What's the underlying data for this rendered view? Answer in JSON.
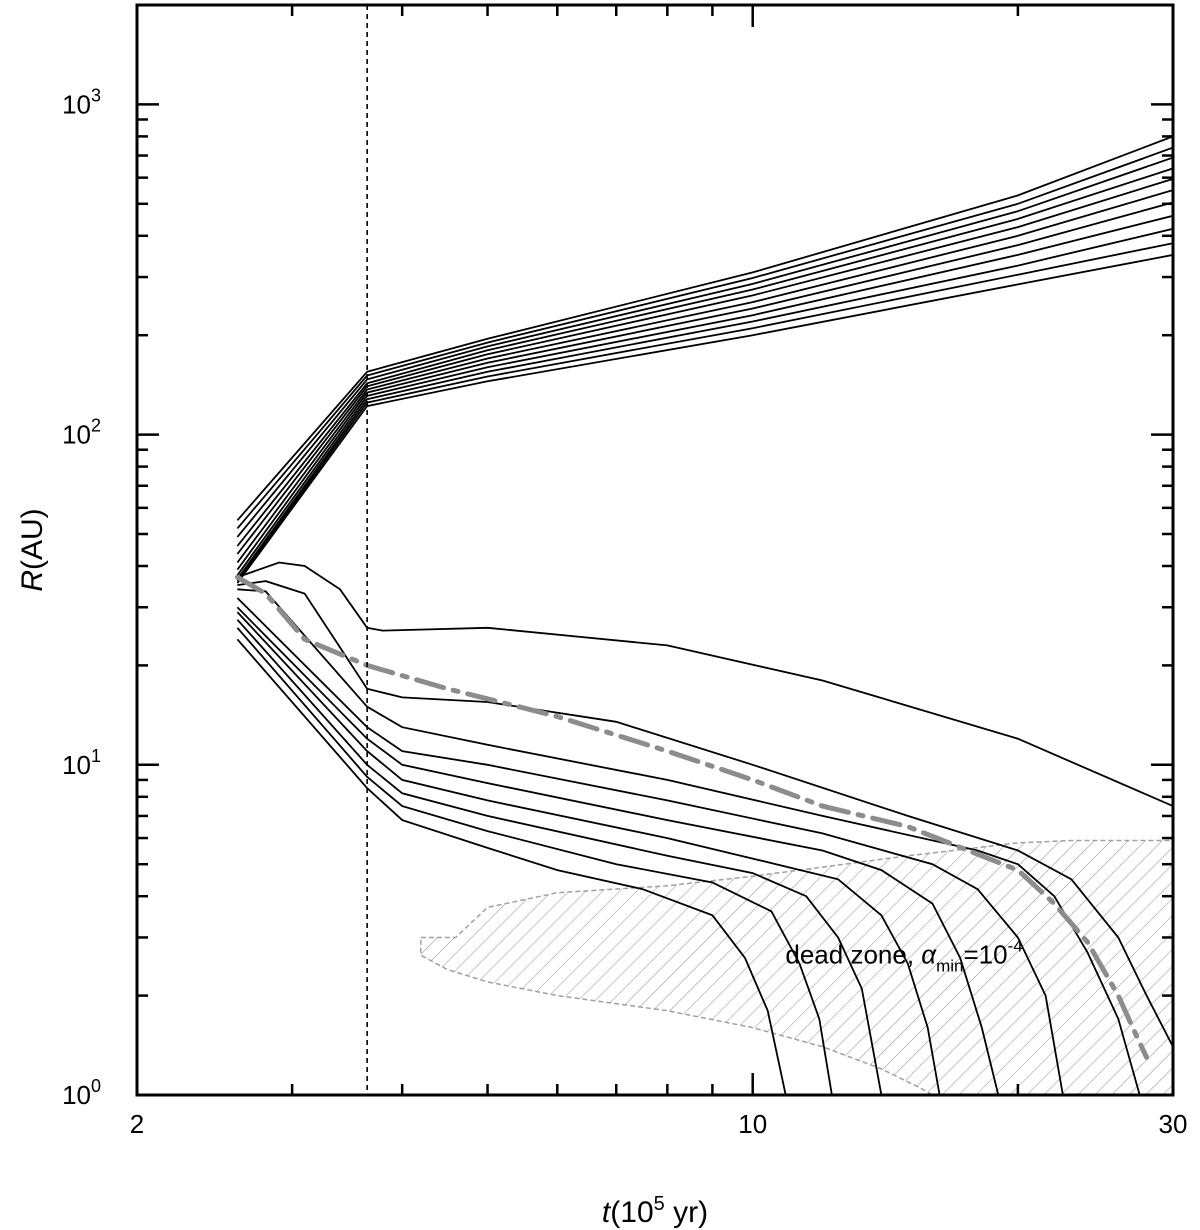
{
  "chart_data": {
    "type": "line",
    "xscale": "log",
    "yscale": "log",
    "xlim": [
      2,
      30
    ],
    "ylim": [
      1,
      2000
    ],
    "grid": false,
    "legend": "none",
    "xlabel": {
      "italic": "t",
      "rest": "(10",
      "sup": "5",
      "tail": " yr)"
    },
    "ylabel": {
      "italic": "R",
      "rest": "(AU)"
    },
    "x_tick_labels": [
      {
        "value": 2,
        "label": "2"
      },
      {
        "value": 10,
        "label": "10"
      },
      {
        "value": 30,
        "label": "30"
      }
    ],
    "y_tick_labels": [
      {
        "value": 1,
        "base": "10",
        "exp": "0"
      },
      {
        "value": 10,
        "base": "10",
        "exp": "1"
      },
      {
        "value": 100,
        "base": "10",
        "exp": "2"
      },
      {
        "value": 1000,
        "base": "10",
        "exp": "3"
      }
    ],
    "vline": {
      "x": 3.65,
      "style": "dashed",
      "color": "#000000"
    },
    "annotation": {
      "text_before": "dead zone, ",
      "symbol": "α",
      "sub": "min",
      "eq": "=10",
      "sup": "-4",
      "x": 10.5,
      "y": 2.5
    },
    "colors": {
      "lines": "#000000",
      "dashdot": "#8c8c8c",
      "hatch": "#a0a0a0"
    },
    "outer_lines": [
      {
        "values": [
          [
            2.6,
            55
          ],
          [
            3.65,
            155
          ],
          [
            5,
            195
          ],
          [
            10,
            310
          ],
          [
            20,
            530
          ],
          [
            30,
            800
          ]
        ]
      },
      {
        "values": [
          [
            2.6,
            52
          ],
          [
            3.65,
            151
          ],
          [
            5,
            190
          ],
          [
            10,
            298
          ],
          [
            20,
            500
          ],
          [
            30,
            740
          ]
        ]
      },
      {
        "values": [
          [
            2.6,
            49
          ],
          [
            3.65,
            147
          ],
          [
            5,
            185
          ],
          [
            10,
            286
          ],
          [
            20,
            475
          ],
          [
            30,
            690
          ]
        ]
      },
      {
        "values": [
          [
            2.6,
            46
          ],
          [
            3.65,
            143
          ],
          [
            5,
            180
          ],
          [
            10,
            275
          ],
          [
            20,
            450
          ],
          [
            30,
            640
          ]
        ]
      },
      {
        "values": [
          [
            2.6,
            43.5
          ],
          [
            3.65,
            140
          ],
          [
            5,
            175
          ],
          [
            10,
            264
          ],
          [
            20,
            425
          ],
          [
            30,
            595
          ]
        ]
      },
      {
        "values": [
          [
            2.6,
            41
          ],
          [
            3.65,
            137
          ],
          [
            5,
            170
          ],
          [
            10,
            252
          ],
          [
            20,
            400
          ],
          [
            30,
            550
          ]
        ]
      },
      {
        "values": [
          [
            2.6,
            39
          ],
          [
            3.65,
            134
          ],
          [
            5,
            165
          ],
          [
            10,
            241
          ],
          [
            20,
            375
          ],
          [
            30,
            505
          ]
        ]
      },
      {
        "values": [
          [
            2.6,
            37.5
          ],
          [
            3.65,
            131
          ],
          [
            5,
            160
          ],
          [
            10,
            230
          ],
          [
            20,
            350
          ],
          [
            30,
            460
          ]
        ]
      },
      {
        "values": [
          [
            2.6,
            36.5
          ],
          [
            3.65,
            128
          ],
          [
            5,
            155
          ],
          [
            10,
            220
          ],
          [
            20,
            325
          ],
          [
            30,
            420
          ]
        ]
      },
      {
        "values": [
          [
            2.6,
            36
          ],
          [
            3.65,
            125
          ],
          [
            5,
            150
          ],
          [
            10,
            210
          ],
          [
            20,
            305
          ],
          [
            30,
            380
          ]
        ]
      },
      {
        "values": [
          [
            2.6,
            35.5
          ],
          [
            3.65,
            122
          ],
          [
            5,
            145
          ],
          [
            10,
            200
          ],
          [
            20,
            285
          ],
          [
            30,
            350
          ]
        ]
      }
    ],
    "inner_lines": [
      {
        "values": [
          [
            2.6,
            37
          ],
          [
            2.9,
            41
          ],
          [
            3.1,
            40
          ],
          [
            3.4,
            34
          ],
          [
            3.65,
            26
          ],
          [
            3.8,
            25.5
          ],
          [
            5,
            26
          ],
          [
            8,
            23
          ],
          [
            12,
            18
          ],
          [
            20,
            12
          ],
          [
            30,
            7.5
          ]
        ]
      },
      {
        "values": [
          [
            2.6,
            35
          ],
          [
            2.8,
            36
          ],
          [
            3.1,
            33
          ],
          [
            3.65,
            17
          ],
          [
            4,
            16
          ],
          [
            5,
            15.5
          ],
          [
            7,
            13.5
          ],
          [
            10,
            10
          ],
          [
            15,
            7
          ],
          [
            20,
            5.5
          ],
          [
            23,
            4.5
          ],
          [
            26,
            3
          ],
          [
            28,
            2
          ],
          [
            30,
            1.4
          ]
        ]
      },
      {
        "values": [
          [
            2.6,
            34
          ],
          [
            2.8,
            33.5
          ],
          [
            3.65,
            15
          ],
          [
            4,
            13
          ],
          [
            5,
            11.5
          ],
          [
            8,
            9
          ],
          [
            12,
            7
          ],
          [
            18,
            5.5
          ],
          [
            20,
            5
          ],
          [
            22,
            4
          ],
          [
            24,
            2.7
          ],
          [
            26,
            1.7
          ],
          [
            27.5,
            1
          ]
        ]
      },
      {
        "values": [
          [
            2.6,
            32
          ],
          [
            3.65,
            13
          ],
          [
            4,
            11
          ],
          [
            5,
            10
          ],
          [
            8,
            7.8
          ],
          [
            12,
            6.2
          ],
          [
            16,
            5
          ],
          [
            18,
            4.2
          ],
          [
            20,
            3
          ],
          [
            21.5,
            2
          ],
          [
            22.5,
            1
          ]
        ]
      },
      {
        "values": [
          [
            2.6,
            30
          ],
          [
            3.65,
            12
          ],
          [
            4,
            10
          ],
          [
            5,
            8.8
          ],
          [
            8,
            6.8
          ],
          [
            12,
            5.5
          ],
          [
            14,
            4.8
          ],
          [
            16,
            3.8
          ],
          [
            17.2,
            2.6
          ],
          [
            18.2,
            1.6
          ],
          [
            19,
            1
          ]
        ]
      },
      {
        "values": [
          [
            2.6,
            29
          ],
          [
            3.65,
            11
          ],
          [
            4,
            9
          ],
          [
            5,
            7.8
          ],
          [
            8,
            6
          ],
          [
            10,
            5.2
          ],
          [
            12.5,
            4.5
          ],
          [
            14,
            3.5
          ],
          [
            15,
            2.5
          ],
          [
            15.8,
            1.6
          ],
          [
            16.3,
            1
          ]
        ]
      },
      {
        "values": [
          [
            2.6,
            27.5
          ],
          [
            3.65,
            10
          ],
          [
            4,
            8.2
          ],
          [
            5,
            7
          ],
          [
            8,
            5.3
          ],
          [
            10,
            4.7
          ],
          [
            11.5,
            4
          ],
          [
            12.5,
            3
          ],
          [
            13.3,
            2.1
          ],
          [
            14,
            1
          ]
        ]
      },
      {
        "values": [
          [
            2.6,
            26
          ],
          [
            3.65,
            9.2
          ],
          [
            4,
            7.5
          ],
          [
            5,
            6.3
          ],
          [
            7,
            5
          ],
          [
            9,
            4.4
          ],
          [
            10.5,
            3.6
          ],
          [
            11.3,
            2.5
          ],
          [
            11.9,
            1.7
          ],
          [
            12.3,
            1
          ]
        ]
      },
      {
        "values": [
          [
            2.6,
            24
          ],
          [
            3.65,
            8.5
          ],
          [
            4,
            6.8
          ],
          [
            5,
            5.6
          ],
          [
            6,
            4.8
          ],
          [
            7.5,
            4.2
          ],
          [
            9,
            3.5
          ],
          [
            9.8,
            2.6
          ],
          [
            10.4,
            1.8
          ],
          [
            10.9,
            1
          ]
        ]
      }
    ],
    "dashdot_line": {
      "values": [
        [
          2.6,
          37
        ],
        [
          2.8,
          33
        ],
        [
          3.1,
          24
        ],
        [
          3.65,
          20
        ],
        [
          4.5,
          17
        ],
        [
          6,
          14
        ],
        [
          8,
          11
        ],
        [
          10,
          9
        ],
        [
          12,
          7.5
        ],
        [
          15,
          6.5
        ],
        [
          20,
          4.8
        ],
        [
          22,
          3.8
        ],
        [
          24,
          2.9
        ],
        [
          26,
          2
        ],
        [
          27,
          1.6
        ],
        [
          28,
          1.3
        ]
      ]
    },
    "dead_zone_region": {
      "upper": [
        [
          4.2,
          3
        ],
        [
          4.6,
          3
        ],
        [
          5,
          3.7
        ],
        [
          6,
          4.1
        ],
        [
          8,
          4.3
        ],
        [
          10,
          4.6
        ],
        [
          12,
          4.9
        ],
        [
          15,
          5.3
        ],
        [
          20,
          5.8
        ],
        [
          23,
          5.9
        ],
        [
          30,
          5.9
        ]
      ],
      "lower": [
        [
          30,
          1
        ],
        [
          16,
          1
        ],
        [
          15.5,
          1.05
        ],
        [
          14,
          1.2
        ],
        [
          12,
          1.4
        ],
        [
          10,
          1.6
        ],
        [
          8,
          1.8
        ],
        [
          6,
          2
        ],
        [
          5,
          2.2
        ],
        [
          4.5,
          2.4
        ],
        [
          4.2,
          2.65
        ]
      ]
    }
  }
}
